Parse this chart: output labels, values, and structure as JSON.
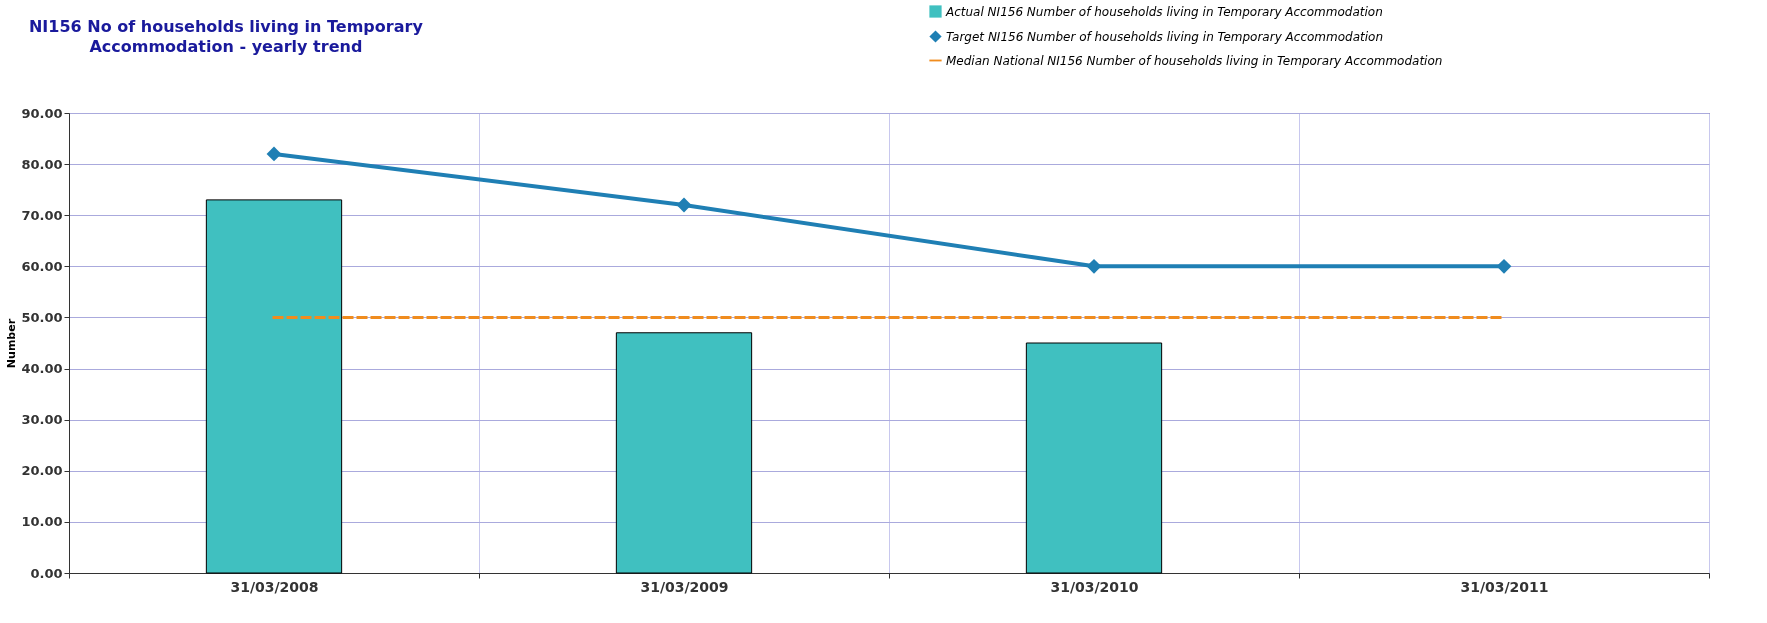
{
  "chart_data": {
    "type": "bar",
    "title": "NI156 No of households living in Temporary Accommodation - yearly trend",
    "ylabel": "Number",
    "categories": [
      "31/03/2008",
      "31/03/2009",
      "31/03/2010",
      "31/03/2011"
    ],
    "series": [
      {
        "name": "Actual NI156 Number of households living in Temporary Accommodation",
        "color": "#40c0c0",
        "values": [
          73,
          47,
          45,
          null
        ]
      },
      {
        "name": "Target NI156 Number of households living in Temporary Accommodation",
        "type": "line",
        "color": "#1f7fb4",
        "marker": "diamond",
        "line_style": "solid",
        "values": [
          82,
          72,
          60,
          60
        ]
      },
      {
        "name": "Median National NI156 Number of households living in Temporary Accommodation",
        "type": "line",
        "color": "#f08c1e",
        "marker": "none",
        "line_style": "dashed",
        "values": [
          50,
          50,
          50,
          50
        ]
      }
    ],
    "ylim": [
      0,
      90
    ],
    "yticks": [
      {
        "value": 0,
        "label": "0.00"
      },
      {
        "value": 10,
        "label": "10.00"
      },
      {
        "value": 20,
        "label": "20.00"
      },
      {
        "value": 30,
        "label": "30.00"
      },
      {
        "value": 40,
        "label": "40.00"
      },
      {
        "value": 50,
        "label": "50.00"
      },
      {
        "value": 60,
        "label": "60.00"
      },
      {
        "value": 70,
        "label": "70.00"
      },
      {
        "value": 80,
        "label": "80.00"
      },
      {
        "value": 90,
        "label": "90.00"
      }
    ],
    "grid": true,
    "legend": "top right"
  }
}
